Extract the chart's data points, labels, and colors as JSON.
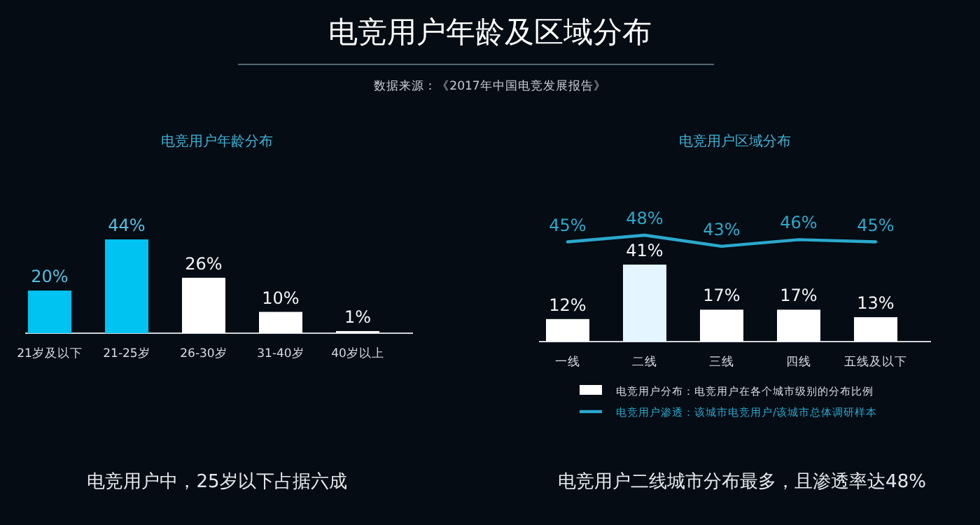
{
  "chart_data": [
    {
      "type": "other",
      "title": "电竞用户年龄及区域分布",
      "annotations": [
        "数据来源：《2017年中国电竞发展报告》"
      ]
    },
    {
      "type": "bar",
      "title": "电竞用户年龄分布",
      "categories": [
        "21岁及以下",
        "21-25岁",
        "26-30岁",
        "31-40岁",
        "40岁以上"
      ],
      "values": [
        20,
        44,
        26,
        10,
        1
      ],
      "value_labels": [
        "20%",
        "44%",
        "26%",
        "10%",
        "1%"
      ],
      "colors": [
        "#00c3f2",
        "#00c3f2",
        "#ffffff",
        "#ffffff",
        "#ffffff"
      ],
      "tick_labels": "x",
      "annotations": [
        "电竞用户中，25岁以下占据六成"
      ]
    },
    {
      "type": "bar",
      "categories": [
        "一线",
        "二线",
        "三线",
        "四线",
        "五线及以下"
      ],
      "tick_labels": "x",
      "legend": "bottom",
      "series": [
        {
          "name": "电竞用户分布：电竞用户在各个城市级别的分布比例",
          "color": "#ffffff",
          "colors": [
            "#ffffff",
            "#e4f5ff",
            "#ffffff",
            "#ffffff",
            "#ffffff"
          ],
          "values": [
            12,
            41,
            17,
            17,
            13
          ],
          "value_labels": [
            "12%",
            "41%",
            "17%",
            "17%",
            "13%"
          ]
        }
      ],
      "annotations": [
        "电竞用户二线城市分布最多，且渗透率达48%"
      ]
    },
    {
      "type": "line",
      "title": "电竞用户区域分布",
      "categories": [
        null,
        null,
        null,
        null,
        null
      ],
      "tick_labels": false,
      "legend": "bottom",
      "series": [
        {
          "name": "电竞用户渗透：该城市电竞用户/该城市总体调研样本",
          "color": "#2ba9cc",
          "values": [
            45,
            48,
            43,
            46,
            45
          ],
          "value_labels": [
            "45%",
            "48%",
            "43%",
            "46%",
            "45%"
          ]
        }
      ]
    }
  ]
}
